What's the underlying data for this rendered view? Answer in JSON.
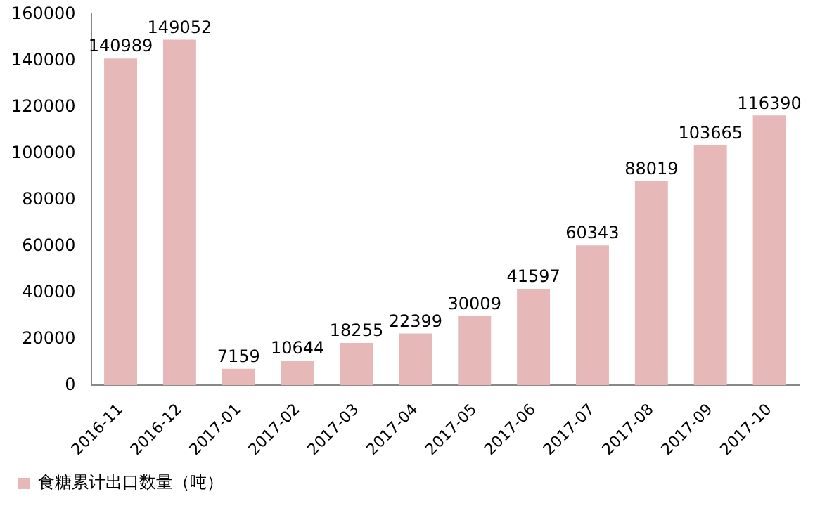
{
  "chart_data": {
    "type": "bar",
    "categories": [
      "2016-11",
      "2016-12",
      "2017-01",
      "2017-02",
      "2017-03",
      "2017-04",
      "2017-05",
      "2017-06",
      "2017-07",
      "2017-08",
      "2017-09",
      "2017-10"
    ],
    "series": [
      {
        "name": "食糖累计出口数量（吨）",
        "color": "#e6b9b8",
        "values": [
          140989,
          149052,
          7159,
          10644,
          18255,
          22399,
          30009,
          41597,
          60343,
          88019,
          103665,
          116390
        ]
      }
    ],
    "ylim": [
      0,
      160000
    ],
    "yticks": [
      0,
      20000,
      40000,
      60000,
      80000,
      100000,
      120000,
      140000,
      160000
    ],
    "grid": false,
    "legend": "bottom left",
    "data_labels": true
  }
}
